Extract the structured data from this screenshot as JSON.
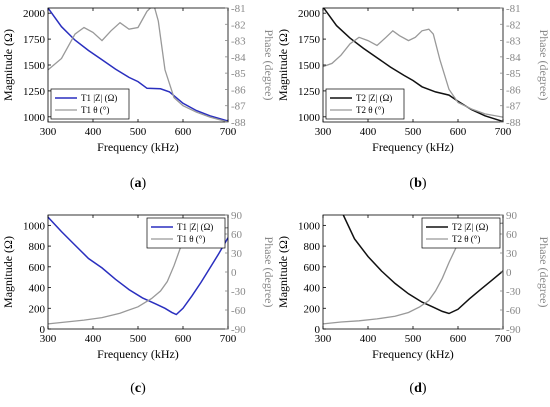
{
  "figure": {
    "panels": [
      {
        "label": "(a)",
        "label_letter": "a",
        "xlabel": "Frequency (kHz)",
        "ylabel_left": "Magnitude (Ω)",
        "ylabel_right": "Phase (degree)",
        "legend": {
          "mag": "T1 |Z| (Ω)",
          "phase": "T1 θ (°)"
        }
      },
      {
        "label": "(b)",
        "label_letter": "b",
        "xlabel": "Frequency (kHz)",
        "ylabel_left": "Magnitude (Ω)",
        "ylabel_right": "Phase (degree)",
        "legend": {
          "mag": "T2 |Z| (Ω)",
          "phase": "T2 θ (°)"
        }
      },
      {
        "label": "(c)",
        "label_letter": "c",
        "xlabel": "Frequency (kHz)",
        "ylabel_left": "Magnitude (Ω)",
        "ylabel_right": "Phase (degree)",
        "legend": {
          "mag": "T1 |Z| (Ω)",
          "phase": "T1 θ (°)"
        }
      },
      {
        "label": "(d)",
        "label_letter": "d",
        "xlabel": "Frequency (kHz)",
        "ylabel_left": "Magnitude (Ω)",
        "ylabel_right": "Phase (degree)",
        "legend": {
          "mag": "T2 |Z| (Ω)",
          "phase": "T2 θ (°)"
        }
      }
    ]
  },
  "chart_data": [
    {
      "type": "line",
      "xlim": [
        300,
        700
      ],
      "ylim_left": [
        950,
        2050
      ],
      "ylim_right": [
        -88,
        -81
      ],
      "xticks": [
        300,
        400,
        500,
        600,
        700
      ],
      "yticks_left": [
        1000,
        1250,
        1500,
        1750,
        2000
      ],
      "yticks_right": [
        -81,
        -82,
        -83,
        -84,
        -85,
        -86,
        -87,
        -88
      ],
      "legend_position": "bottom-left",
      "colors": {
        "mag": "#2a2fbf",
        "phase": "#999999"
      },
      "series": [
        {
          "name": "T1 |Z| (Ω)",
          "axis": "left",
          "x": [
            300,
            330,
            360,
            390,
            420,
            450,
            480,
            500,
            520,
            550,
            570,
            600,
            630,
            660,
            700
          ],
          "y": [
            2050,
            1870,
            1740,
            1640,
            1550,
            1460,
            1380,
            1340,
            1275,
            1270,
            1240,
            1130,
            1060,
            1010,
            960
          ]
        },
        {
          "name": "T1 θ (°)",
          "axis": "right",
          "x": [
            300,
            330,
            360,
            380,
            400,
            420,
            440,
            460,
            480,
            500,
            520,
            535,
            545,
            560,
            580,
            600,
            630,
            660,
            700
          ],
          "y": [
            -84.8,
            -84.1,
            -82.6,
            -82.2,
            -82.5,
            -83.0,
            -82.4,
            -81.9,
            -82.3,
            -82.2,
            -81.2,
            -80.8,
            -81.8,
            -84.8,
            -86.5,
            -87.0,
            -87.4,
            -87.7,
            -88.0
          ]
        }
      ]
    },
    {
      "type": "line",
      "xlim": [
        300,
        700
      ],
      "ylim_left": [
        950,
        2050
      ],
      "ylim_right": [
        -88,
        -81
      ],
      "xticks": [
        300,
        400,
        500,
        600,
        700
      ],
      "yticks_left": [
        1000,
        1250,
        1500,
        1750,
        2000
      ],
      "yticks_right": [
        -81,
        -82,
        -83,
        -84,
        -85,
        -86,
        -87,
        -88
      ],
      "legend_position": "bottom-left",
      "colors": {
        "mag": "#111111",
        "phase": "#999999"
      },
      "series": [
        {
          "name": "T2 |Z| (Ω)",
          "axis": "left",
          "x": [
            300,
            330,
            360,
            390,
            420,
            450,
            480,
            500,
            520,
            550,
            580,
            600,
            630,
            660,
            700
          ],
          "y": [
            2060,
            1880,
            1760,
            1660,
            1570,
            1480,
            1400,
            1350,
            1290,
            1240,
            1210,
            1150,
            1070,
            1010,
            955
          ]
        },
        {
          "name": "T2 θ (°)",
          "axis": "right",
          "x": [
            300,
            320,
            340,
            360,
            380,
            400,
            420,
            440,
            455,
            470,
            490,
            505,
            520,
            535,
            545,
            560,
            580,
            600,
            630,
            660,
            700
          ],
          "y": [
            -84.6,
            -84.4,
            -83.9,
            -83.2,
            -82.8,
            -83.0,
            -83.3,
            -82.8,
            -82.4,
            -82.7,
            -83.0,
            -82.8,
            -82.4,
            -82.3,
            -82.6,
            -84.2,
            -86.0,
            -86.8,
            -87.2,
            -87.5,
            -87.7
          ]
        }
      ]
    },
    {
      "type": "line",
      "xlim": [
        300,
        700
      ],
      "ylim_left": [
        0,
        1100
      ],
      "ylim_right": [
        -90,
        90
      ],
      "xticks": [
        300,
        400,
        500,
        600,
        700
      ],
      "yticks_left": [
        0,
        200,
        400,
        600,
        800,
        1000
      ],
      "yticks_right": [
        90,
        60,
        30,
        0,
        -30,
        -60,
        -90
      ],
      "legend_position": "top-right",
      "colors": {
        "mag": "#2a2fbf",
        "phase": "#999999"
      },
      "series": [
        {
          "name": "T1 |Z| (Ω)",
          "axis": "left",
          "x": [
            300,
            330,
            360,
            390,
            420,
            450,
            480,
            510,
            540,
            560,
            575,
            585,
            600,
            620,
            640,
            660,
            680,
            700
          ],
          "y": [
            1080,
            940,
            810,
            680,
            590,
            480,
            380,
            300,
            240,
            200,
            160,
            140,
            200,
            320,
            450,
            590,
            730,
            880
          ]
        },
        {
          "name": "T1 θ (°)",
          "axis": "right",
          "x": [
            300,
            340,
            380,
            420,
            460,
            500,
            530,
            550,
            565,
            580,
            595,
            610,
            630,
            660,
            700
          ],
          "y": [
            -82,
            -79,
            -76,
            -72,
            -65,
            -55,
            -42,
            -30,
            -15,
            10,
            40,
            58,
            65,
            68,
            70
          ]
        }
      ]
    },
    {
      "type": "line",
      "xlim": [
        300,
        700
      ],
      "ylim_left": [
        0,
        1100
      ],
      "ylim_right": [
        -90,
        90
      ],
      "xticks": [
        300,
        400,
        500,
        600,
        700
      ],
      "yticks_left": [
        0,
        200,
        400,
        600,
        800,
        1000
      ],
      "yticks_right": [
        90,
        60,
        30,
        0,
        -30,
        -60,
        -90
      ],
      "legend_position": "top-right",
      "colors": {
        "mag": "#111111",
        "phase": "#999999"
      },
      "series": [
        {
          "name": "T2 |Z| (Ω)",
          "axis": "left",
          "x": [
            345,
            370,
            400,
            430,
            460,
            490,
            520,
            545,
            565,
            580,
            600,
            625,
            650,
            675,
            700
          ],
          "y": [
            1100,
            870,
            700,
            560,
            440,
            340,
            260,
            210,
            170,
            150,
            190,
            290,
            380,
            470,
            560
          ]
        },
        {
          "name": "T2 θ (°)",
          "axis": "right",
          "x": [
            300,
            340,
            380,
            420,
            460,
            490,
            515,
            535,
            550,
            565,
            580,
            600,
            625,
            650,
            680,
            700
          ],
          "y": [
            -82,
            -79,
            -77,
            -74,
            -70,
            -64,
            -55,
            -45,
            -30,
            -10,
            15,
            45,
            65,
            72,
            76,
            77
          ]
        }
      ]
    }
  ]
}
